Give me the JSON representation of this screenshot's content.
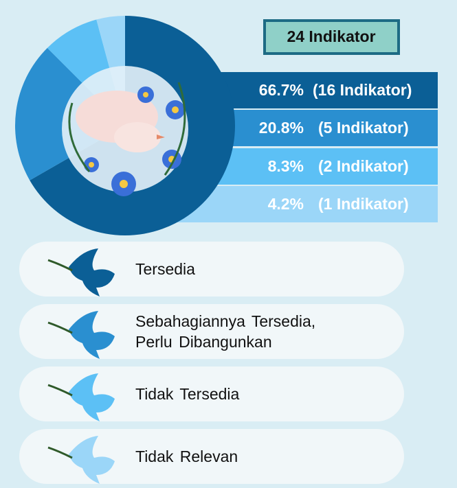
{
  "chart_data": {
    "type": "pie",
    "title": "24 Indikator",
    "categories": [
      "Tersedia",
      "Sebahagiannya Tersedia, Perlu Dibangunkan",
      "Tidak Tersedia",
      "Tidak Relevan"
    ],
    "values": [
      66.7,
      20.8,
      8.3,
      4.2
    ],
    "value_labels": [
      "66.7%",
      "20.8%",
      "8.3%",
      "4.2%"
    ],
    "count_labels": [
      "(16 Indikator)",
      "(5 Indikator)",
      "(2 Indikator)",
      "(1 Indikator)"
    ],
    "colors": [
      "#0b5f96",
      "#2a8fd0",
      "#5cc0f5",
      "#9bd6f8"
    ]
  }
}
